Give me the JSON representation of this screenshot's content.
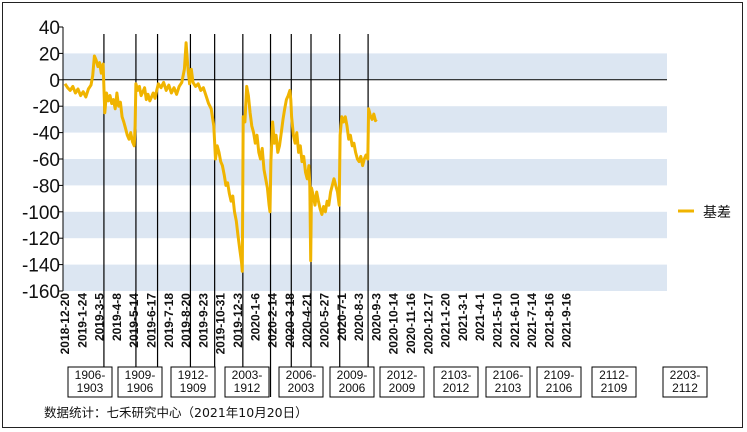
{
  "source_note": "数据统计：七禾研究中心（2021年10月20日）",
  "colors": {
    "line": "#F0B400",
    "band": "#DCE6F2",
    "axis": "#000000",
    "divider": "#000000"
  },
  "chart_data": {
    "type": "line",
    "title": "",
    "xlabel": "",
    "ylabel": "",
    "ylim": [
      -160,
      40
    ],
    "yticks": [
      40,
      20,
      0,
      -20,
      -40,
      -60,
      -80,
      -100,
      -120,
      -140,
      -160
    ],
    "x_tick_labels": [
      "2018-12-20",
      "2019-1-24",
      "2019-3-5",
      "2019-4-8",
      "2019-5-14",
      "2019-6-17",
      "2019-7-18",
      "2019-8-20",
      "2019-9-23",
      "2019-10-31",
      "2019-12-3",
      "2020-1-6",
      "2020-2-14",
      "2020-3-18",
      "2020-4-21",
      "2020-5-27",
      "2020-7-1",
      "2020-8-3",
      "2020-9-3",
      "2020-10-14",
      "2020-11-16",
      "2020-12-17",
      "2021-1-20",
      "2021-3-1",
      "2021-4-1",
      "2021-5-10",
      "2021-6-10",
      "2021-7-14",
      "2021-8-16",
      "2021-9-16"
    ],
    "legend": {
      "position": "right",
      "entries": [
        "基差"
      ]
    },
    "grid": "horizontal bands",
    "series": [
      {
        "name": "基差",
        "points": [
          [
            0,
            -3
          ],
          [
            0.15,
            -6
          ],
          [
            0.3,
            -8
          ],
          [
            0.45,
            -5
          ],
          [
            0.6,
            -10
          ],
          [
            0.75,
            -7
          ],
          [
            0.9,
            -12
          ],
          [
            1.05,
            -9
          ],
          [
            1.2,
            -13
          ],
          [
            1.35,
            -7
          ],
          [
            1.5,
            -4
          ],
          [
            1.6,
            3
          ],
          [
            1.7,
            18
          ],
          [
            1.8,
            15
          ],
          [
            1.9,
            10
          ],
          [
            2.0,
            13
          ],
          [
            2.1,
            5
          ],
          [
            2.2,
            12
          ],
          [
            2.3,
            -25
          ],
          [
            2.4,
            -10
          ],
          [
            2.5,
            -16
          ],
          [
            2.6,
            -12
          ],
          [
            2.7,
            -18
          ],
          [
            2.8,
            -15
          ],
          [
            2.9,
            -22
          ],
          [
            3.0,
            -10
          ],
          [
            3.1,
            -20
          ],
          [
            3.2,
            -17
          ],
          [
            3.3,
            -28
          ],
          [
            3.4,
            -32
          ],
          [
            3.5,
            -37
          ],
          [
            3.6,
            -42
          ],
          [
            3.7,
            -45
          ],
          [
            3.8,
            -40
          ],
          [
            3.9,
            -47
          ],
          [
            4.0,
            -50
          ],
          [
            4.05,
            -35
          ],
          [
            4.1,
            -3
          ],
          [
            4.2,
            -8
          ],
          [
            4.3,
            -5
          ],
          [
            4.4,
            -12
          ],
          [
            4.5,
            -9
          ],
          [
            4.6,
            -6
          ],
          [
            4.7,
            -15
          ],
          [
            4.8,
            -11
          ],
          [
            4.9,
            -16
          ],
          [
            5.0,
            -13
          ],
          [
            5.1,
            -10
          ],
          [
            5.2,
            -14
          ],
          [
            5.3,
            -8
          ],
          [
            5.4,
            -3
          ],
          [
            5.55,
            -6
          ],
          [
            5.7,
            -2
          ],
          [
            5.85,
            -8
          ],
          [
            6.0,
            -4
          ],
          [
            6.15,
            -10
          ],
          [
            6.3,
            -6
          ],
          [
            6.45,
            -11
          ],
          [
            6.6,
            -5
          ],
          [
            6.75,
            -2
          ],
          [
            6.9,
            8
          ],
          [
            7.0,
            28
          ],
          [
            7.1,
            10
          ],
          [
            7.2,
            -3
          ],
          [
            7.3,
            8
          ],
          [
            7.4,
            -2
          ],
          [
            7.55,
            -5
          ],
          [
            7.7,
            -3
          ],
          [
            7.85,
            -8
          ],
          [
            8.0,
            -6
          ],
          [
            8.15,
            -12
          ],
          [
            8.3,
            -18
          ],
          [
            8.45,
            -22
          ],
          [
            8.6,
            -35
          ],
          [
            8.7,
            -60
          ],
          [
            8.8,
            -50
          ],
          [
            8.9,
            -55
          ],
          [
            9.0,
            -62
          ],
          [
            9.1,
            -65
          ],
          [
            9.2,
            -72
          ],
          [
            9.3,
            -80
          ],
          [
            9.4,
            -78
          ],
          [
            9.5,
            -86
          ],
          [
            9.6,
            -92
          ],
          [
            9.7,
            -88
          ],
          [
            9.8,
            -100
          ],
          [
            9.9,
            -107
          ],
          [
            10.0,
            -118
          ],
          [
            10.1,
            -128
          ],
          [
            10.2,
            -138
          ],
          [
            10.25,
            -145
          ],
          [
            10.3,
            -28
          ],
          [
            10.4,
            -32
          ],
          [
            10.5,
            -5
          ],
          [
            10.6,
            -12
          ],
          [
            10.7,
            -25
          ],
          [
            10.8,
            -35
          ],
          [
            10.9,
            -40
          ],
          [
            11.0,
            -48
          ],
          [
            11.1,
            -42
          ],
          [
            11.2,
            -55
          ],
          [
            11.3,
            -60
          ],
          [
            11.4,
            -52
          ],
          [
            11.5,
            -68
          ],
          [
            11.6,
            -75
          ],
          [
            11.7,
            -82
          ],
          [
            11.8,
            -95
          ],
          [
            11.85,
            -100
          ],
          [
            11.9,
            -62
          ],
          [
            12.0,
            -32
          ],
          [
            12.1,
            -48
          ],
          [
            12.2,
            -42
          ],
          [
            12.3,
            -55
          ],
          [
            12.4,
            -50
          ],
          [
            12.5,
            -40
          ],
          [
            12.6,
            -30
          ],
          [
            12.7,
            -22
          ],
          [
            12.8,
            -15
          ],
          [
            12.9,
            -12
          ],
          [
            13.0,
            -8
          ],
          [
            13.05,
            -15
          ],
          [
            13.1,
            -28
          ],
          [
            13.2,
            -42
          ],
          [
            13.3,
            -48
          ],
          [
            13.4,
            -40
          ],
          [
            13.5,
            -55
          ],
          [
            13.6,
            -50
          ],
          [
            13.7,
            -62
          ],
          [
            13.8,
            -58
          ],
          [
            13.9,
            -70
          ],
          [
            14.0,
            -75
          ],
          [
            14.1,
            -65
          ],
          [
            14.15,
            -80
          ],
          [
            14.2,
            -137
          ],
          [
            14.25,
            -82
          ],
          [
            14.35,
            -88
          ],
          [
            14.45,
            -95
          ],
          [
            14.55,
            -85
          ],
          [
            14.65,
            -92
          ],
          [
            14.75,
            -98
          ],
          [
            14.85,
            -102
          ],
          [
            14.95,
            -96
          ],
          [
            15.05,
            -100
          ],
          [
            15.15,
            -92
          ],
          [
            15.25,
            -95
          ],
          [
            15.35,
            -85
          ],
          [
            15.45,
            -80
          ],
          [
            15.55,
            -75
          ],
          [
            15.65,
            -80
          ],
          [
            15.75,
            -85
          ],
          [
            15.85,
            -95
          ],
          [
            15.9,
            -42
          ],
          [
            16.0,
            -28
          ],
          [
            16.1,
            -32
          ],
          [
            16.2,
            -28
          ],
          [
            16.3,
            -35
          ],
          [
            16.4,
            -45
          ],
          [
            16.5,
            -42
          ],
          [
            16.6,
            -50
          ],
          [
            16.7,
            -48
          ],
          [
            16.8,
            -55
          ],
          [
            16.9,
            -60
          ],
          [
            17.0,
            -62
          ],
          [
            17.1,
            -58
          ],
          [
            17.2,
            -65
          ],
          [
            17.3,
            -60
          ],
          [
            17.4,
            -57
          ],
          [
            17.5,
            -60
          ],
          [
            17.55,
            -22
          ],
          [
            17.65,
            -27
          ],
          [
            17.75,
            -30
          ],
          [
            17.85,
            -26
          ],
          [
            17.95,
            -31
          ],
          [
            18.0,
            -30
          ]
        ]
      }
    ],
    "contract_labels": [
      [
        "1906-",
        "1903"
      ],
      [
        "1909-",
        "1906"
      ],
      [
        "1912-",
        "1909"
      ],
      [
        "2003-",
        "1912"
      ],
      [
        "2006-",
        "2003"
      ],
      [
        "2009-",
        "2006"
      ],
      [
        "2012-",
        "2009"
      ],
      [
        "2103-",
        "2012"
      ],
      [
        "2106-",
        "2103"
      ],
      [
        "2109-",
        "2106"
      ],
      [
        "2112-",
        "2109"
      ],
      [
        "2203-",
        "2112"
      ]
    ],
    "contract_dividers_x": [
      2.25,
      4.1,
      5.35,
      7.25,
      8.65,
      10.28,
      11.88,
      13.08,
      14.22,
      15.88,
      17.52
    ]
  }
}
